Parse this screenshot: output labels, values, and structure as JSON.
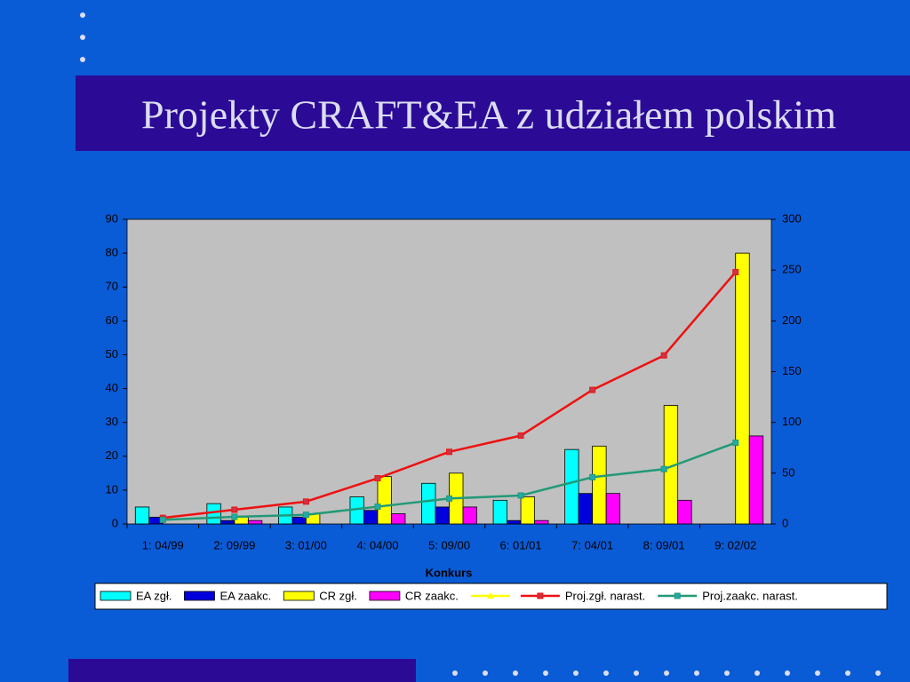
{
  "chart_data": {
    "type": "bar",
    "title": "Projekty CRAFT&EA z udziałem polskim",
    "x_label": "Konkurs",
    "categories": [
      "1: 04/99",
      "2: 09/99",
      "3: 01/00",
      "4: 04/00",
      "5: 09/00",
      "6: 01/01",
      "7: 04/01",
      "8: 09/01",
      "9: 02/02"
    ],
    "series": [
      {
        "name": "EA zgł.",
        "color": "#00ffff",
        "type": "bar",
        "values": [
          5,
          6,
          5,
          8,
          12,
          7,
          22,
          0,
          0
        ]
      },
      {
        "name": "EA zaakc.",
        "color": "#0000dd",
        "type": "bar",
        "values": [
          2,
          1,
          2,
          4,
          5,
          1,
          9,
          0,
          0
        ]
      },
      {
        "name": "CR zgł.",
        "color": "#ffff00",
        "type": "bar",
        "values": [
          0,
          2,
          3,
          14,
          15,
          8,
          23,
          35,
          80
        ]
      },
      {
        "name": "CR zaakc.",
        "color": "#ff00ff",
        "type": "bar",
        "values": [
          0,
          1,
          0,
          3,
          5,
          1,
          9,
          7,
          26
        ]
      },
      {
        "color": "#ffff00",
        "type": "line",
        "marker": "triangle",
        "axis": "y2",
        "values": [
          null,
          null,
          null,
          null,
          null,
          null,
          null,
          null,
          null
        ]
      },
      {
        "name": "Proj.zgł. narast.",
        "color": "#ee1111",
        "type": "line",
        "marker": "square",
        "axis": "y2",
        "values": [
          6,
          14,
          22,
          45,
          71,
          87,
          132,
          166,
          248
        ]
      },
      {
        "name": "Proj.zaakc. narast.",
        "color": "#229977",
        "type": "line",
        "marker": "square",
        "axis": "y2",
        "values": [
          4,
          7,
          9,
          17,
          25,
          28,
          46,
          54,
          80
        ]
      }
    ],
    "ylim": [
      0,
      90
    ],
    "yticks": [
      0,
      10,
      20,
      30,
      40,
      50,
      60,
      70,
      80,
      90
    ],
    "y2lim": [
      0,
      300
    ],
    "y2ticks": [
      0,
      50,
      100,
      150,
      200,
      250,
      300
    ],
    "plot_background": "#c0c0c0"
  }
}
